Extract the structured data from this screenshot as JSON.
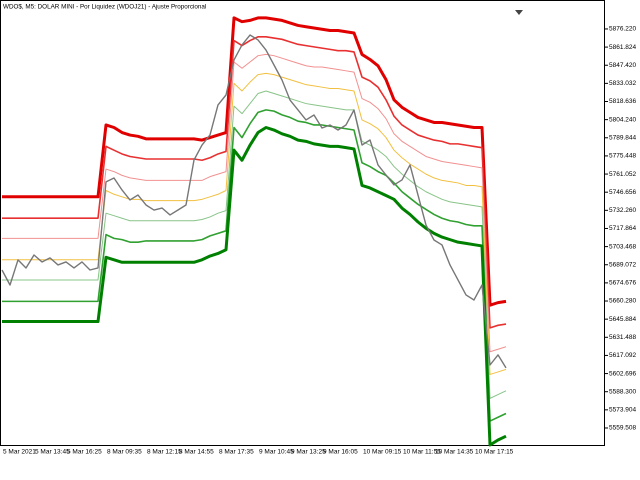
{
  "chart_data": {
    "type": "line",
    "title": "WDO$, M5:  DOLAR MINI - Por Liquidez (WDOJ21) - Ajuste Proporcional",
    "categories": [
      "5 Mar 2021",
      null,
      null,
      null,
      "5 Mar 13:45",
      null,
      null,
      null,
      "5 Mar 16:25",
      null,
      null,
      null,
      null,
      "8 Mar 09:35",
      null,
      null,
      null,
      null,
      "8 Mar 12:15",
      null,
      null,
      null,
      "8 Mar 14:55",
      null,
      null,
      null,
      null,
      "8 Mar 17:35",
      null,
      null,
      null,
      null,
      "9 Mar 10:45",
      null,
      null,
      null,
      "9 Mar 13:25",
      null,
      null,
      null,
      "9 Mar 16:05",
      null,
      null,
      null,
      null,
      "10 Mar 09:15",
      null,
      null,
      null,
      null,
      "10 Mar 11:55",
      null,
      null,
      null,
      "10 Mar 14:35",
      null,
      null,
      null,
      null,
      "10 Mar 17:15",
      null,
      null,
      null,
      null
    ],
    "ylim": [
      5546,
      5899.2
    ],
    "yticks": [
      {
        "value": 5876.22,
        "label": "5876.220"
      },
      5861.824,
      {
        "value": 5847.42,
        "label": "5847.420"
      },
      5833.032,
      5818.636,
      {
        "value": 5804.24,
        "label": "5804.240"
      },
      5789.844,
      5775.448,
      5761.052,
      5746.656,
      {
        "value": 5732.26,
        "label": "5732.260"
      },
      5717.864,
      5703.468,
      5689.072,
      5674.676,
      {
        "value": 5660.28,
        "label": "5660.280"
      },
      5645.884,
      5631.488,
      5617.092,
      5602.696,
      {
        "value": 5588.3,
        "label": "5588.300"
      },
      5573.904,
      5559.508
    ],
    "grid": false,
    "series": [
      {
        "color": "#e00000",
        "values": [
          5743,
          5743,
          5743,
          5743,
          5743,
          5743,
          5743,
          5743,
          5743,
          5743,
          5743,
          5743,
          5743,
          5800,
          5798,
          5794,
          5792,
          5791,
          5789,
          5789,
          5789,
          5789,
          5789,
          5789,
          5789,
          5788,
          5790,
          5792,
          5794,
          5885,
          5882,
          5883,
          5885,
          5885,
          5884,
          5883,
          5881,
          5879,
          5878,
          5877,
          5876,
          5875,
          5875,
          5874,
          5873,
          5856,
          5852,
          5847,
          5836,
          5820,
          5814,
          5810,
          5806,
          5804,
          5802,
          5802,
          5801,
          5800,
          5799,
          5798,
          5798,
          5657,
          5659,
          5660
        ]
      },
      {
        "color": "#e83030",
        "values": [
          5726,
          5726,
          5726,
          5726,
          5726,
          5726,
          5726,
          5726,
          5726,
          5726,
          5726,
          5726,
          5726,
          5783,
          5780,
          5777,
          5775,
          5774,
          5773,
          5773,
          5773,
          5773,
          5773,
          5773,
          5773,
          5772,
          5774,
          5777,
          5779,
          5867,
          5863,
          5867,
          5870,
          5870,
          5869,
          5868,
          5866,
          5864,
          5863,
          5862,
          5861,
          5860,
          5859,
          5859,
          5858,
          5838,
          5835,
          5830,
          5820,
          5807,
          5800,
          5796,
          5792,
          5790,
          5788,
          5787,
          5785,
          5785,
          5784,
          5783,
          5782,
          5639,
          5641,
          5642
        ]
      },
      {
        "color": "#f29090",
        "values": [
          5710,
          5710,
          5710,
          5710,
          5710,
          5710,
          5710,
          5710,
          5710,
          5710,
          5710,
          5710,
          5710,
          5765,
          5763,
          5760,
          5758,
          5757,
          5756,
          5756,
          5756,
          5756,
          5756,
          5756,
          5756,
          5756,
          5759,
          5761,
          5763,
          5850,
          5845,
          5850,
          5855,
          5856,
          5855,
          5853,
          5851,
          5849,
          5847,
          5846,
          5846,
          5845,
          5844,
          5843,
          5842,
          5821,
          5818,
          5813,
          5805,
          5793,
          5787,
          5783,
          5779,
          5775,
          5773,
          5771,
          5770,
          5769,
          5768,
          5767,
          5766,
          5620,
          5622,
          5624
        ]
      },
      {
        "color": "#f2c040",
        "values": [
          5693,
          5693,
          5693,
          5693,
          5693,
          5693,
          5693,
          5693,
          5693,
          5693,
          5693,
          5693,
          5693,
          5748,
          5745,
          5743,
          5741,
          5741,
          5740,
          5740,
          5740,
          5740,
          5740,
          5740,
          5740,
          5741,
          5743,
          5745,
          5748,
          5833,
          5827,
          5834,
          5840,
          5841,
          5840,
          5838,
          5836,
          5834,
          5832,
          5831,
          5830,
          5829,
          5829,
          5828,
          5827,
          5804,
          5801,
          5797,
          5790,
          5780,
          5774,
          5769,
          5765,
          5761,
          5758,
          5756,
          5755,
          5754,
          5752,
          5752,
          5751,
          5602,
          5604,
          5606
        ]
      },
      {
        "color": "#88c488",
        "values": [
          5677,
          5677,
          5677,
          5677,
          5677,
          5677,
          5677,
          5677,
          5677,
          5677,
          5677,
          5677,
          5677,
          5730,
          5728,
          5726,
          5724,
          5724,
          5724,
          5724,
          5724,
          5724,
          5724,
          5724,
          5724,
          5725,
          5727,
          5730,
          5732,
          5815,
          5809,
          5817,
          5825,
          5827,
          5825,
          5823,
          5821,
          5819,
          5817,
          5816,
          5815,
          5814,
          5813,
          5812,
          5812,
          5787,
          5784,
          5780,
          5775,
          5767,
          5761,
          5756,
          5751,
          5747,
          5744,
          5741,
          5739,
          5738,
          5737,
          5736,
          5735,
          5583,
          5586,
          5589
        ]
      },
      {
        "color": "#30a030",
        "values": [
          5660,
          5660,
          5660,
          5660,
          5660,
          5660,
          5660,
          5660,
          5660,
          5660,
          5660,
          5660,
          5660,
          5713,
          5710,
          5709,
          5707,
          5707,
          5708,
          5708,
          5708,
          5708,
          5708,
          5708,
          5708,
          5709,
          5712,
          5714,
          5716,
          5798,
          5790,
          5801,
          5810,
          5812,
          5811,
          5808,
          5806,
          5803,
          5802,
          5800,
          5800,
          5799,
          5798,
          5797,
          5796,
          5770,
          5767,
          5763,
          5760,
          5754,
          5747,
          5742,
          5737,
          5733,
          5729,
          5726,
          5724,
          5723,
          5721,
          5720,
          5720,
          5565,
          5568,
          5571
        ]
      },
      {
        "color": "#008000",
        "values": [
          5644,
          5644,
          5644,
          5644,
          5644,
          5644,
          5644,
          5644,
          5644,
          5644,
          5644,
          5644,
          5644,
          5695,
          5693,
          5691,
          5691,
          5691,
          5691,
          5691,
          5691,
          5691,
          5691,
          5691,
          5691,
          5693,
          5696,
          5698,
          5701,
          5780,
          5772,
          5784,
          5794,
          5798,
          5796,
          5793,
          5791,
          5788,
          5787,
          5785,
          5784,
          5783,
          5783,
          5782,
          5781,
          5752,
          5750,
          5747,
          5744,
          5741,
          5734,
          5729,
          5723,
          5718,
          5714,
          5711,
          5709,
          5707,
          5706,
          5705,
          5704,
          5546,
          5550,
          5553
        ]
      },
      {
        "color": "#777777",
        "values": [
          5684.9,
          5673.0,
          5692.9,
          5686.5,
          5696.8,
          5691.3,
          5694.5,
          5688.9,
          5691.3,
          5686.5,
          5691.3,
          5684.9,
          5686.5,
          5754.8,
          5757.9,
          5748.4,
          5740.5,
          5744.4,
          5736.5,
          5732.5,
          5734.1,
          5728.6,
          5732.5,
          5736.5,
          5772.2,
          5784.1,
          5792.1,
          5815.9,
          5823.8,
          5851.6,
          5863.5,
          5871.4,
          5867.5,
          5859.5,
          5847.6,
          5835.7,
          5819.8,
          5811.9,
          5804.0,
          5807.9,
          5797.6,
          5800.0,
          5796.0,
          5800.0,
          5811.9,
          5784.1,
          5788.1,
          5768.3,
          5760.3,
          5752.4,
          5756.4,
          5768.3,
          5744.4,
          5720.6,
          5708.7,
          5704.8,
          5688.9,
          5677.0,
          5665.1,
          5661.1,
          5673.0,
          5609.5,
          5617.5,
          5607.2
        ]
      }
    ]
  }
}
